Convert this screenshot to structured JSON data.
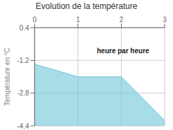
{
  "chart_data": {
    "type": "area",
    "title": "Evolution de la température",
    "ylabel": "Température en °C",
    "annotation": "heure par heure",
    "x": [
      0,
      1,
      2,
      3
    ],
    "values": [
      -1.38,
      -2.0,
      -2.0,
      -4.15
    ],
    "color": "#6ec6d8",
    "xlim": [
      0,
      3
    ],
    "xticks": [
      0,
      1,
      2,
      3
    ],
    "ylim": [
      -4.4,
      0.4
    ],
    "yticks": [
      0.4,
      -1.2,
      -2.8,
      -4.4
    ],
    "grid": true
  }
}
